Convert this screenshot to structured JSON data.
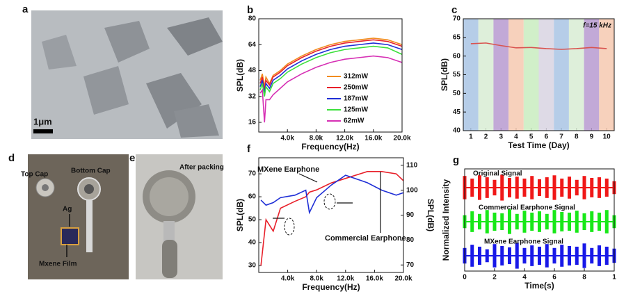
{
  "panels": {
    "a": {
      "letter": "a",
      "scale_bar": "1μm"
    },
    "d": {
      "letter": "d",
      "labels": [
        "Top Cap",
        "Bottom Cap",
        "Ag",
        "Mxene  Film"
      ]
    },
    "e": {
      "letter": "e",
      "label": "After packing"
    }
  },
  "chart_data": [
    {
      "type": "line",
      "panel": "b",
      "xlabel": "Frequency(Hz)",
      "ylabel": "SPL(dB)",
      "x": [
        200,
        500,
        800,
        1000,
        1500,
        2000,
        3000,
        4000,
        6000,
        8000,
        10000,
        12000,
        14000,
        16000,
        18000,
        20000
      ],
      "xlim": [
        0,
        20000
      ],
      "xticks": [
        {
          "value": 4000,
          "label": "4.0k"
        },
        {
          "value": 8000,
          "label": "8.0k"
        },
        {
          "value": 12000,
          "label": "12.0k"
        },
        {
          "value": 16000,
          "label": "16.0k"
        },
        {
          "value": 20000,
          "label": "20.0k"
        }
      ],
      "ylim": [
        10,
        80
      ],
      "yticks": [
        16,
        32,
        48,
        64,
        80
      ],
      "legend": "lower right",
      "series": [
        {
          "name": "312mW",
          "color": "#f28c1e",
          "values": [
            42,
            46,
            38,
            44,
            40,
            45,
            48,
            52,
            57,
            61,
            64,
            66,
            67,
            68,
            67,
            64
          ]
        },
        {
          "name": "250mW",
          "color": "#e8202a",
          "values": [
            40,
            44,
            36,
            42,
            39,
            44,
            47,
            51,
            56,
            60,
            63,
            65,
            66,
            67,
            66,
            63
          ]
        },
        {
          "name": "187mW",
          "color": "#1f2fd6",
          "values": [
            38,
            42,
            34,
            40,
            37,
            42,
            45,
            49,
            54,
            58,
            61,
            63,
            64,
            65,
            64,
            61
          ]
        },
        {
          "name": "125mW",
          "color": "#3be03b",
          "values": [
            36,
            40,
            32,
            38,
            35,
            40,
            43,
            47,
            52,
            56,
            59,
            61,
            62,
            63,
            62,
            58
          ]
        },
        {
          "name": "62mW",
          "color": "#d62fb4",
          "values": [
            34,
            36,
            16,
            30,
            30,
            33,
            37,
            41,
            46,
            50,
            53,
            55,
            56,
            57,
            56,
            53
          ]
        }
      ]
    },
    {
      "type": "line",
      "panel": "c",
      "xlabel": "Test Time (Day)",
      "ylabel": "SPL(dB)",
      "annotation": "f=15 kHz",
      "x": [
        1,
        2,
        3,
        4,
        5,
        6,
        7,
        8,
        9,
        10
      ],
      "values": [
        63.3,
        63.5,
        62.8,
        62.2,
        62.3,
        62,
        61.8,
        62,
        62.3,
        62
      ],
      "color": "#d9534f",
      "band_colors": [
        "#a9c4e4",
        "#d8ecd4",
        "#b79ad0",
        "#f6c9b0",
        "#c9ecc0",
        "#d8d4e2",
        "#a9c4e4",
        "#d8ecd4",
        "#b79ad0",
        "#f6c9b0"
      ],
      "xlim": [
        0.5,
        10.5
      ],
      "xticks": [
        1,
        2,
        3,
        4,
        5,
        6,
        7,
        8,
        9,
        10
      ],
      "ylim": [
        40,
        70
      ],
      "yticks": [
        40,
        45,
        50,
        55,
        60,
        65,
        70
      ]
    },
    {
      "type": "line",
      "panel": "f",
      "xlabel": "Frequency(Hz)",
      "ylabel": "SPL(dB)",
      "y2label": "SPL(dB)",
      "annotations": [
        "MXene Earphone",
        "Commercial Earphone"
      ],
      "x": [
        300,
        1000,
        2000,
        3000,
        5000,
        6500,
        7000,
        8000,
        10000,
        12000,
        14000,
        15000,
        17000,
        19000,
        20000
      ],
      "xlim": [
        0,
        20000
      ],
      "xticks": [
        {
          "value": 4000,
          "label": "4.0k"
        },
        {
          "value": 8000,
          "label": "8.0k"
        },
        {
          "value": 12000,
          "label": "12.0k"
        },
        {
          "value": 16000,
          "label": "16.0k"
        },
        {
          "value": 20000,
          "label": "20.0k"
        }
      ],
      "ylim": [
        27,
        77
      ],
      "yticks": [
        30,
        40,
        50,
        60,
        70
      ],
      "y2lim": [
        67,
        113
      ],
      "y2ticks": [
        70,
        80,
        90,
        100,
        110
      ],
      "series": [
        {
          "color": "#e8202a",
          "values": [
            30,
            50,
            45,
            55,
            58,
            60,
            62,
            63,
            66,
            68,
            70,
            71,
            71,
            70,
            67
          ]
        },
        {
          "color": "#1f2fd6",
          "axis": "y2",
          "values": [
            96,
            94,
            95,
            97,
            98,
            100,
            91,
            97,
            102,
            106,
            104,
            103,
            100,
            98,
            99
          ]
        }
      ]
    },
    {
      "type": "waveform",
      "panel": "g",
      "xlabel": "Time(s)",
      "ylabel": "Normalized Intensity",
      "x": [
        0,
        0.05,
        0.1,
        0.15,
        0.2,
        0.25,
        0.3,
        0.35,
        0.4,
        0.45,
        0.5,
        0.55,
        0.6,
        0.65,
        0.7,
        0.75,
        0.8,
        0.85,
        0.9,
        0.95,
        1
      ],
      "xlim": [
        0,
        1
      ],
      "xticks": [
        0,
        {
          "value": 0.2,
          "label": "2"
        },
        {
          "value": 0.4,
          "label": "4"
        },
        {
          "value": 0.6,
          "label": "6"
        },
        {
          "value": 0.8,
          "label": "8"
        },
        1
      ],
      "series": [
        {
          "name": "Original Signal",
          "color": "#f01818",
          "values": [
            0.9,
            0.7,
            0.95,
            0.8,
            0.6,
            1,
            0.75,
            0.85,
            0.7,
            0.9,
            0.65,
            0.8,
            0.95,
            0.7,
            0.85,
            0.6,
            0.9,
            0.75,
            0.8,
            0.7,
            0.5
          ]
        },
        {
          "name": "Commercial Earphone Signal",
          "color": "#18e818",
          "values": [
            0.5,
            0.8,
            0.6,
            0.9,
            0.7,
            0.65,
            0.95,
            0.6,
            0.85,
            0.7,
            0.8,
            0.6,
            0.9,
            0.75,
            0.7,
            0.85,
            0.65,
            0.8,
            0.7,
            0.9,
            0.5
          ]
        },
        {
          "name": "MXene Earphone Signal",
          "color": "#1818e8",
          "values": [
            0.6,
            0.85,
            0.7,
            0.5,
            0.9,
            0.75,
            0.65,
            1,
            0.6,
            0.8,
            0.7,
            0.9,
            0.6,
            0.85,
            0.75,
            0.7,
            0.95,
            0.6,
            0.8,
            0.7,
            0.55
          ]
        }
      ]
    }
  ]
}
